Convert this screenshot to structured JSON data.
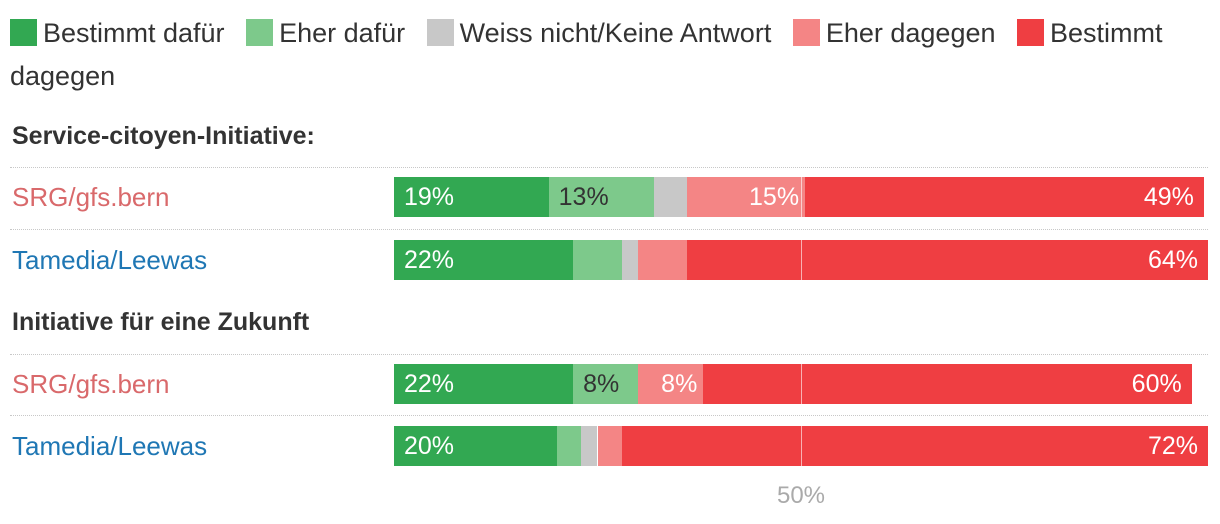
{
  "chart_data": {
    "type": "bar",
    "orientation": "horizontal",
    "stacked": true,
    "legend": [
      {
        "name": "Bestimmt dafür",
        "color": "#32a852"
      },
      {
        "name": "Eher dafür",
        "color": "#7dc98b"
      },
      {
        "name": "Weiss nicht/Keine Antwort",
        "color": "#c8c8c8"
      },
      {
        "name": "Eher dagegen",
        "color": "#f48585"
      },
      {
        "name": "Bestimmt dagegen",
        "color": "#ef3e42"
      }
    ],
    "axis_tick_label": "50%",
    "axis_tick_value": 50,
    "groups": [
      {
        "title": "Service-citoyen-Initiative:",
        "rows": [
          {
            "name": "SRG/gfs.bern",
            "label_color": "#d9696b",
            "values": [
              19,
              13,
              4,
              14.5,
              49
            ],
            "labels": [
              "19%",
              "13%",
              "",
              "15%",
              "49%"
            ]
          },
          {
            "name": "Tamedia/Leewas",
            "label_color": "#1f77b4",
            "values": [
              22,
              6,
              2,
              6,
              64
            ],
            "labels": [
              "22%",
              "",
              "",
              "",
              "64%"
            ]
          }
        ]
      },
      {
        "title": "Initiative für eine Zukunft",
        "rows": [
          {
            "name": "SRG/gfs.bern",
            "label_color": "#d9696b",
            "values": [
              22,
              8,
              0,
              8,
              60
            ],
            "labels": [
              "22%",
              "8%",
              "",
              "8%",
              "60%"
            ]
          },
          {
            "name": "Tamedia/Leewas",
            "label_color": "#1f77b4",
            "values": [
              20,
              3,
              2,
              3,
              72
            ],
            "labels": [
              "20%",
              "",
              "",
              "",
              "72%"
            ]
          }
        ]
      }
    ]
  }
}
